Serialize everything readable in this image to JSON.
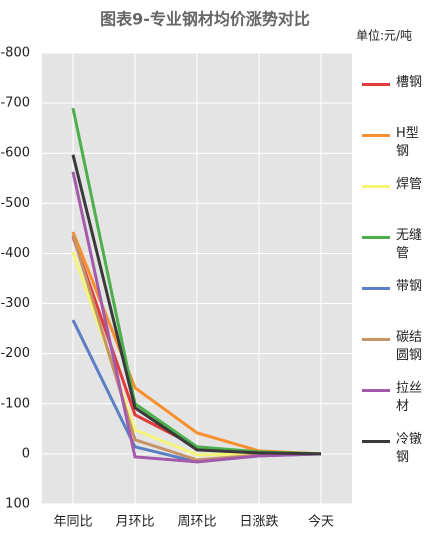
{
  "chart_data": {
    "type": "line",
    "title": "图表9-专业钢材均价涨势对比",
    "subtitle": "单位:元/吨",
    "categories": [
      "年同比",
      "月环比",
      "周环比",
      "日涨跌",
      "今天"
    ],
    "ylim": [
      100,
      -800
    ],
    "yticks": [
      100,
      0,
      -100,
      -200,
      -300,
      -400,
      -500,
      -600,
      -700,
      -800
    ],
    "grid": true,
    "legend": "right",
    "series": [
      {
        "name": "槽钢",
        "color": "#e23b3b",
        "values": [
          -433,
          -78,
          -14,
          -2,
          0
        ]
      },
      {
        "name": "H型钢",
        "color": "#f7902e",
        "values": [
          -443,
          -132,
          -42,
          -6,
          0
        ]
      },
      {
        "name": "焊管",
        "color": "#f5f57a",
        "values": [
          -403,
          -48,
          2,
          0,
          0
        ]
      },
      {
        "name": "无缝管",
        "color": "#4caf4c",
        "values": [
          -690,
          -100,
          -14,
          -4,
          0
        ]
      },
      {
        "name": "带钢",
        "color": "#5b7fc4",
        "values": [
          -267,
          -14,
          16,
          4,
          0
        ]
      },
      {
        "name": "碳结圆钢",
        "color": "#c49467",
        "values": [
          -437,
          -28,
          12,
          2,
          0
        ]
      },
      {
        "name": "拉丝材",
        "color": "#a45aaa",
        "values": [
          -563,
          6,
          16,
          4,
          0
        ]
      },
      {
        "name": "冷镦钢",
        "color": "#3a3a3a",
        "values": [
          -597,
          -92,
          -8,
          -2,
          0
        ]
      }
    ]
  }
}
